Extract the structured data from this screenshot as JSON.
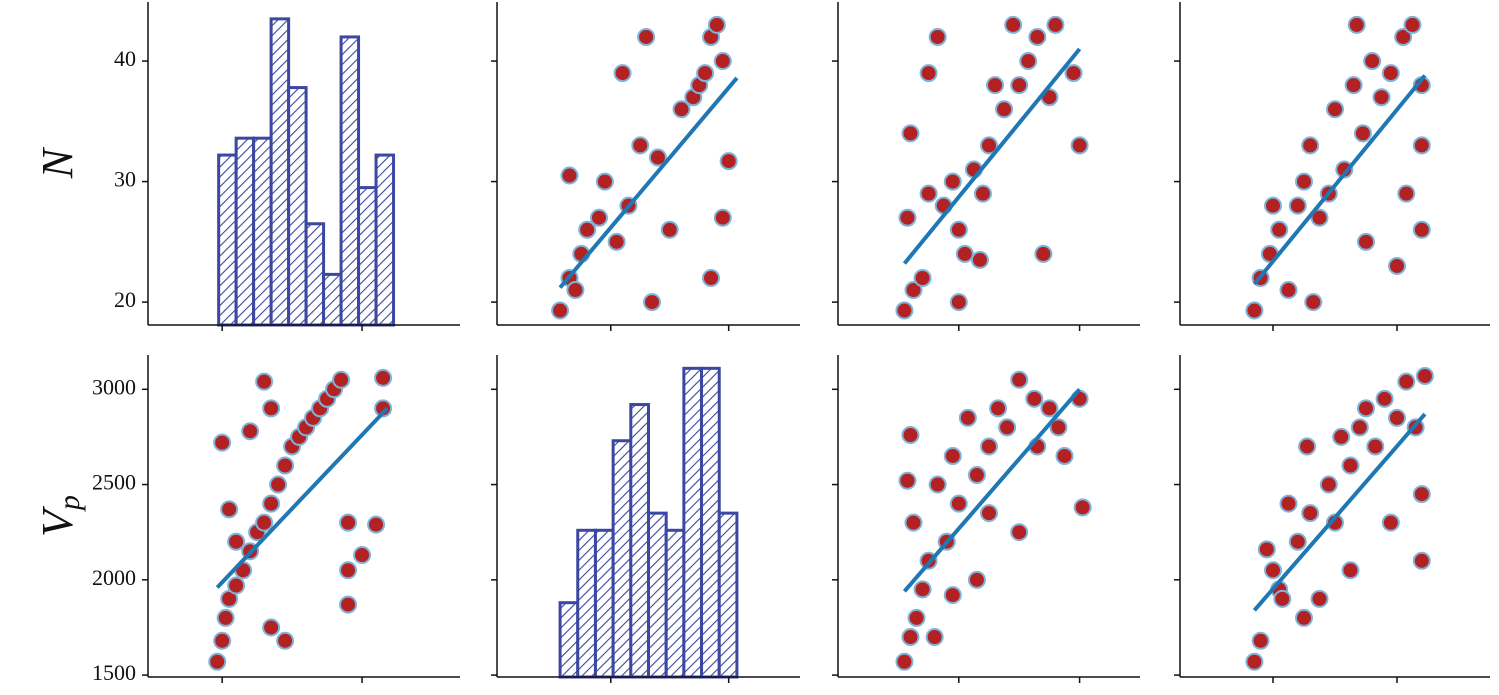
{
  "chart_data": [
    {
      "type": "histogram",
      "ylabel": "N",
      "ytick_labels": true,
      "color": "#3b47a0",
      "bins": [
        19.5,
        22,
        24.5,
        27,
        29.5,
        32,
        34.5,
        37,
        39.5,
        42,
        44.5
      ],
      "values": [
        32.2,
        33.6,
        33.6,
        43.5,
        37.8,
        26.5,
        22.3,
        42,
        29.5,
        32.2
      ],
      "xlim": [
        9.4,
        54
      ],
      "xticks": [
        20,
        40
      ],
      "ylim": [
        18.1,
        44.9
      ],
      "yticks": [
        20,
        30,
        40
      ]
    },
    {
      "type": "scatter",
      "ytick_labels": false,
      "color": "#b22222",
      "fit_color": "#1f77b4",
      "x": [
        1570,
        1650,
        1700,
        1750,
        1800,
        1900,
        1950,
        2050,
        2150,
        2250,
        2350,
        2400,
        2500,
        2600,
        2700,
        2750,
        2800,
        2850,
        2900,
        2950,
        3000,
        1650,
        2100,
        2300,
        2850,
        2950
      ],
      "values": [
        19.3,
        22,
        21,
        24,
        26,
        27,
        30,
        25,
        28,
        33,
        20,
        32,
        26,
        36,
        37,
        38,
        39,
        42,
        43,
        40,
        31.7,
        30.5,
        39,
        42,
        22,
        27
      ],
      "fit": {
        "x": [
          1570,
          3070
        ],
        "values": [
          21.2,
          38.6
        ]
      },
      "xlim": [
        1035,
        3605
      ],
      "xticks": [
        2000,
        3000
      ],
      "ylim": [
        18.1,
        44.9
      ],
      "yticks": [
        20,
        30,
        40
      ]
    },
    {
      "type": "scatter",
      "ytick_labels": false,
      "color": "#b22222",
      "fit_color": "#1f77b4",
      "x": [
        2.2,
        2.5,
        2.8,
        2.4,
        2.3,
        3,
        3.5,
        3.8,
        4,
        4.2,
        4.5,
        4.8,
        5,
        5.2,
        5.5,
        6,
        6.3,
        6.6,
        7,
        7.2,
        7.8,
        8,
        3.3,
        3,
        4,
        6.8,
        5.8,
        4.7
      ],
      "values": [
        19.3,
        21,
        22,
        34,
        27,
        29,
        28,
        30,
        26,
        24,
        31,
        29,
        33,
        38,
        36,
        38,
        40,
        42,
        37,
        43,
        39,
        33,
        42,
        39,
        20,
        24,
        43,
        23.5
      ],
      "fit": {
        "x": [
          2.2,
          8
        ],
        "values": [
          23.2,
          41
        ]
      },
      "xlim": [
        0,
        10
      ],
      "xticks": [
        4,
        8
      ],
      "ylim": [
        18.1,
        44.9
      ],
      "yticks": [
        20,
        30,
        40
      ]
    },
    {
      "type": "scatter",
      "ytick_labels": false,
      "color": "#b22222",
      "fit_color": "#1f77b4",
      "x": [
        2.4,
        2.6,
        2.9,
        3.2,
        3.5,
        3.8,
        4,
        4.2,
        4.5,
        4.8,
        5,
        5.3,
        5.6,
        5.9,
        6.2,
        6.5,
        6.8,
        7.2,
        7.5,
        7.8,
        7.8,
        7.8,
        7,
        5.7,
        3,
        4.3,
        6,
        7.3
      ],
      "values": [
        19.3,
        22,
        24,
        26,
        21,
        28,
        30,
        33,
        27,
        29,
        36,
        31,
        38,
        34,
        40,
        37,
        39,
        42,
        43,
        38,
        33,
        26,
        23,
        43,
        28,
        20,
        25,
        29
      ],
      "fit": {
        "x": [
          2.4,
          7.9
        ],
        "values": [
          21.5,
          38.8
        ]
      },
      "xlim": [
        0,
        10
      ],
      "xticks": [
        3,
        7
      ],
      "ylim": [
        18.1,
        44.9
      ],
      "yticks": [
        20,
        30,
        40
      ]
    },
    {
      "type": "scatter",
      "ylabel": "V",
      "ylabel_subscript": "p",
      "ytick_labels": true,
      "color": "#b22222",
      "fit_color": "#1f77b4",
      "x": [
        19.3,
        20,
        20.5,
        21,
        22,
        23,
        24,
        25,
        26,
        27,
        28,
        29,
        30,
        31,
        32,
        33,
        34,
        35,
        36,
        37,
        20,
        21,
        22,
        24,
        26,
        27,
        29,
        27,
        38,
        38,
        40,
        42,
        38,
        43,
        43
      ],
      "values": [
        1570,
        1680,
        1800,
        1900,
        1970,
        2050,
        2150,
        2250,
        2300,
        2400,
        2500,
        2600,
        2700,
        2750,
        2800,
        2850,
        2900,
        2950,
        3000,
        3050,
        2720,
        2370,
        2200,
        2780,
        3040,
        2900,
        1680,
        1750,
        2300,
        2050,
        2130,
        2290,
        1870,
        2900,
        3060
      ],
      "fit": {
        "x": [
          19.3,
          43.6
        ],
        "values": [
          1960,
          2900
        ]
      },
      "xlim": [
        9.4,
        54
      ],
      "xticks": [
        20,
        40
      ],
      "ylim": [
        1490,
        3180
      ],
      "yticks": [
        1500,
        2000,
        2500,
        3000
      ]
    },
    {
      "type": "histogram",
      "ytick_labels": false,
      "color": "#3b47a0",
      "bins": [
        1570,
        1720,
        1870,
        2020,
        2170,
        2320,
        2470,
        2620,
        2770,
        2920,
        3070
      ],
      "values": [
        1880,
        2260,
        2260,
        2730,
        2920,
        2350,
        2260,
        3110,
        3110,
        2350
      ],
      "xlim": [
        1035,
        3605
      ],
      "xticks": [
        2000,
        3000
      ],
      "ylim": [
        1490,
        3180
      ],
      "yticks": [
        1500,
        2000,
        2500,
        3000
      ]
    },
    {
      "type": "scatter",
      "ytick_labels": false,
      "color": "#b22222",
      "fit_color": "#1f77b4",
      "x": [
        2.2,
        2.4,
        2.6,
        2.8,
        2.3,
        2.4,
        2.5,
        3,
        3.3,
        3.6,
        3.8,
        4,
        4.3,
        4.6,
        5,
        5.3,
        5.6,
        6,
        6.5,
        7,
        7.3,
        7.5,
        8.1,
        8,
        3.2,
        3.8,
        4.6,
        5,
        6,
        6.6
      ],
      "values": [
        1570,
        1700,
        1800,
        1950,
        2520,
        2760,
        2300,
        2100,
        2500,
        2200,
        2650,
        2400,
        2850,
        2550,
        2700,
        2900,
        2800,
        3050,
        2950,
        2900,
        2800,
        2650,
        2380,
        2950,
        1700,
        1920,
        2000,
        2350,
        2250,
        2700
      ],
      "fit": {
        "x": [
          2.2,
          8
        ],
        "values": [
          1940,
          3000
        ]
      },
      "xlim": [
        0,
        10
      ],
      "xticks": [
        4,
        8
      ],
      "ylim": [
        1490,
        3180
      ],
      "yticks": [
        1500,
        2000,
        2500,
        3000
      ]
    },
    {
      "type": "scatter",
      "ytick_labels": false,
      "color": "#b22222",
      "fit_color": "#1f77b4",
      "x": [
        2.4,
        2.6,
        2.8,
        3,
        3.2,
        3.5,
        3.8,
        4,
        4.2,
        4.5,
        4.8,
        5,
        5.2,
        5.5,
        5.8,
        6,
        6.3,
        6.6,
        7,
        7.3,
        7.6,
        7.9,
        7.8,
        7.8,
        6.8,
        5.5,
        4.1,
        3.3
      ],
      "values": [
        1570,
        1680,
        2160,
        2050,
        1950,
        2400,
        2200,
        1800,
        2350,
        1900,
        2500,
        2300,
        2750,
        2600,
        2800,
        2900,
        2700,
        2950,
        2850,
        3040,
        2800,
        3070,
        2450,
        2100,
        2300,
        2050,
        2700,
        1900
      ],
      "fit": {
        "x": [
          2.4,
          7.9
        ],
        "values": [
          1840,
          2870
        ]
      },
      "xlim": [
        0,
        10
      ],
      "xticks": [
        3,
        7
      ],
      "ylim": [
        1490,
        3180
      ],
      "yticks": [
        1500,
        2000,
        2500,
        3000
      ]
    }
  ]
}
